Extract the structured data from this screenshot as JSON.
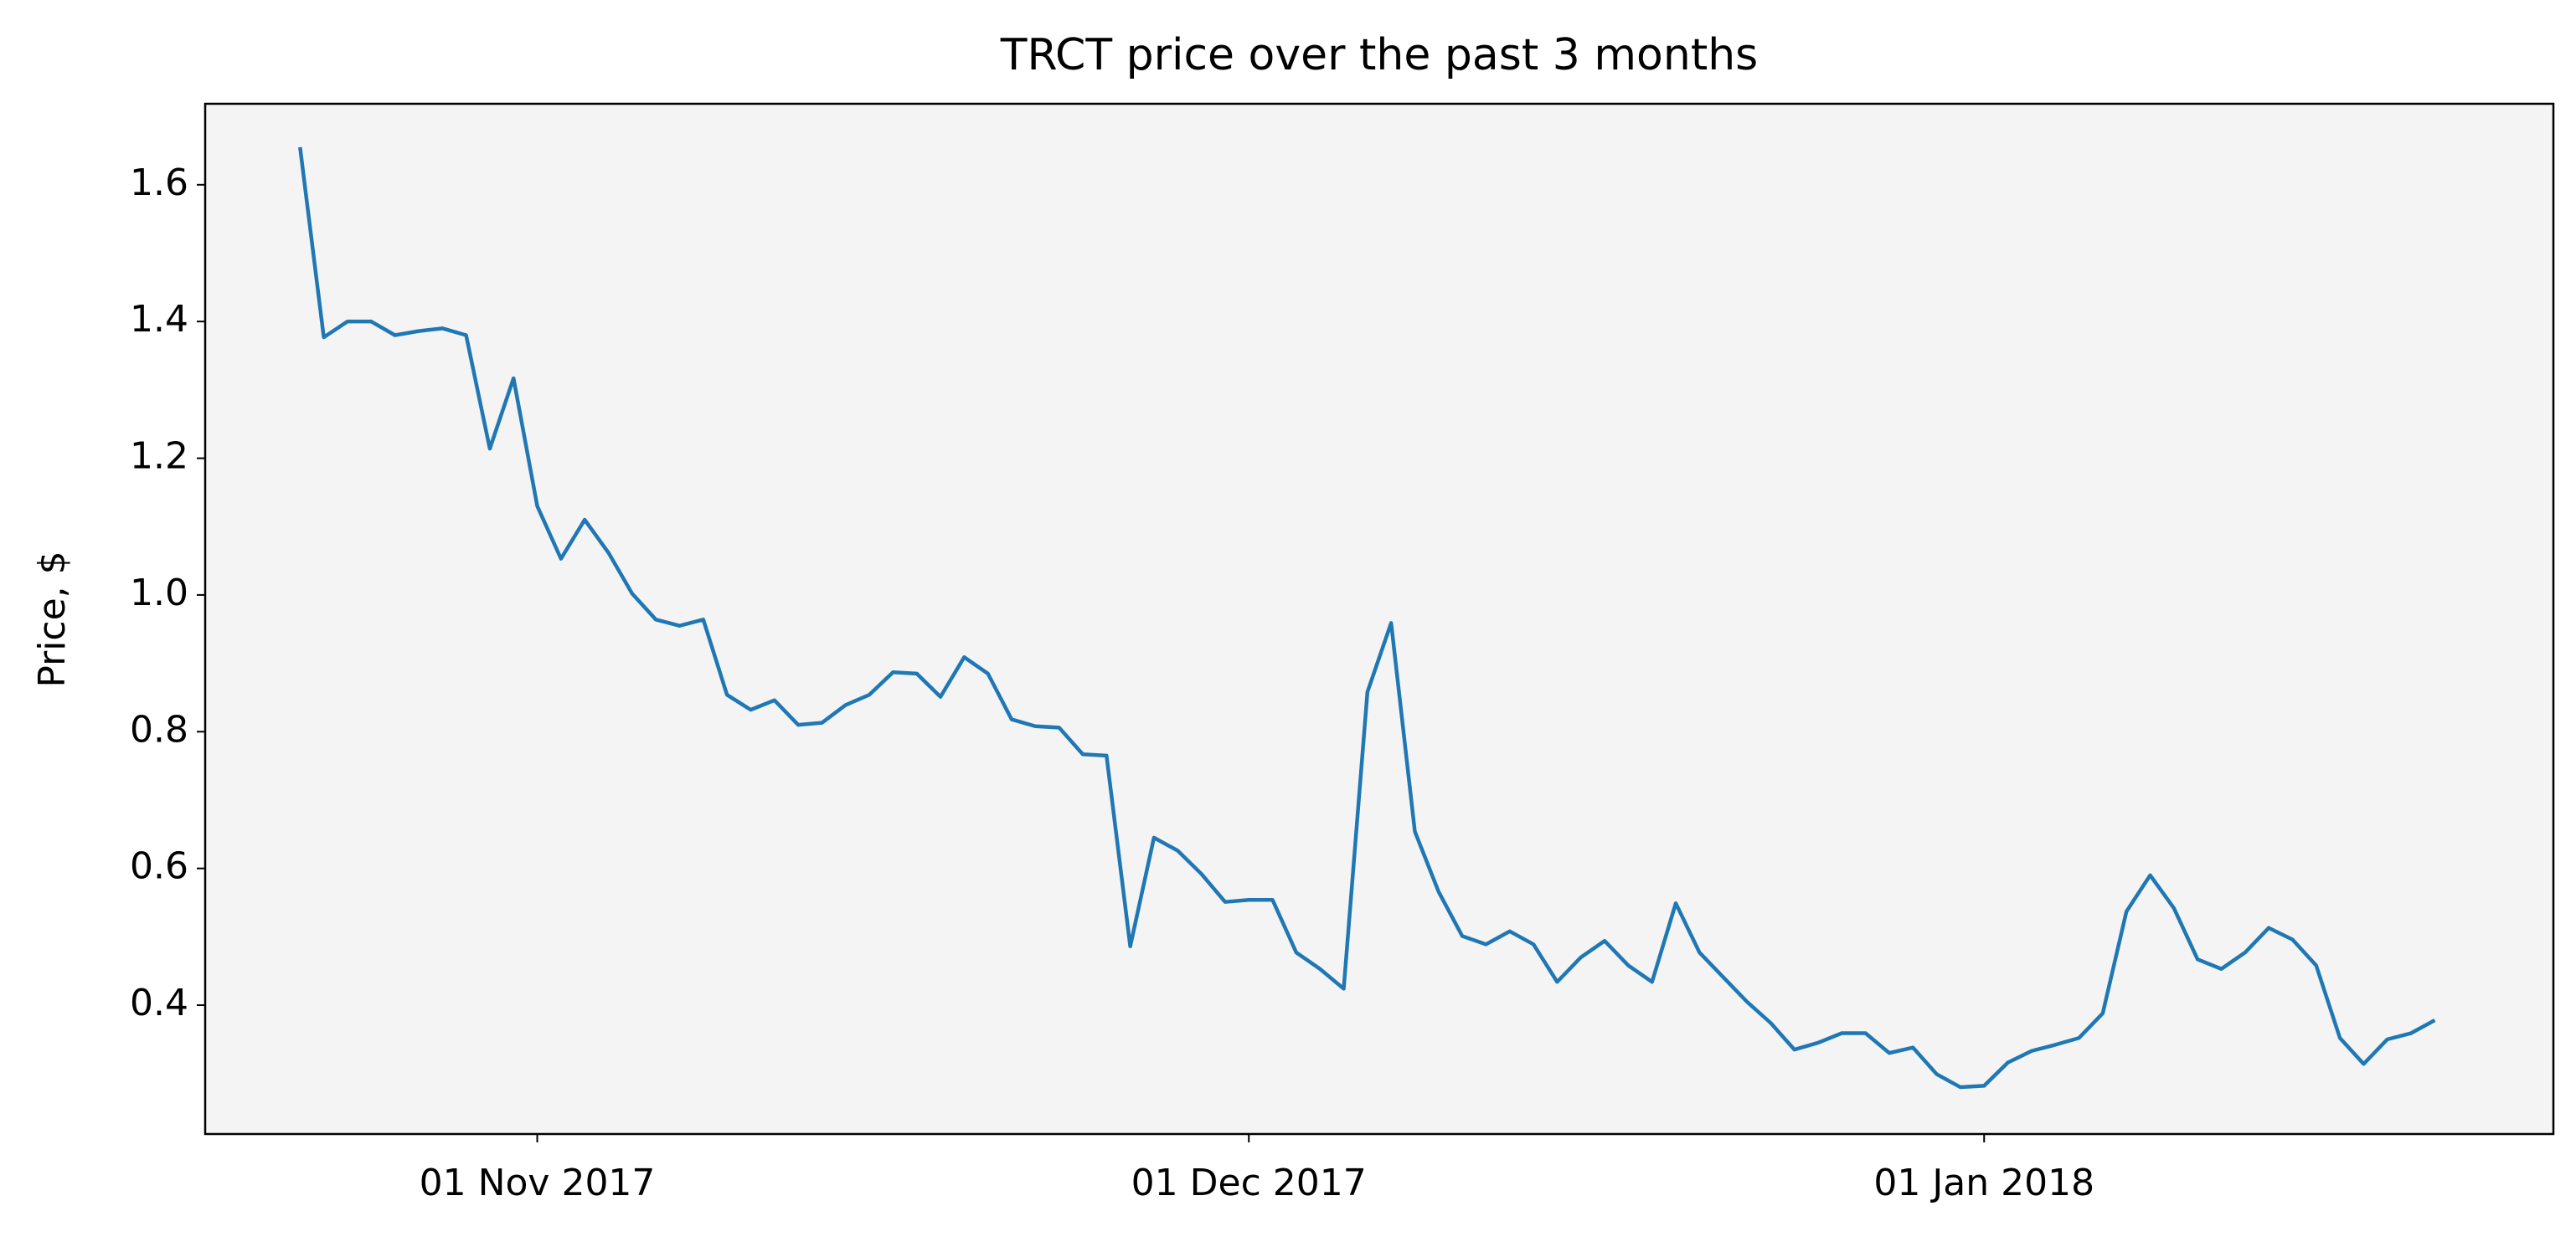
{
  "chart_data": {
    "type": "line",
    "title": "TRCT price over the past 3 months",
    "y_label": "Price, $",
    "x": [
      "2017-10-22",
      "2017-10-23",
      "2017-10-24",
      "2017-10-25",
      "2017-10-26",
      "2017-10-27",
      "2017-10-28",
      "2017-10-29",
      "2017-10-30",
      "2017-10-31",
      "2017-11-01",
      "2017-11-02",
      "2017-11-03",
      "2017-11-04",
      "2017-11-05",
      "2017-11-06",
      "2017-11-07",
      "2017-11-08",
      "2017-11-09",
      "2017-11-10",
      "2017-11-11",
      "2017-11-12",
      "2017-11-13",
      "2017-11-14",
      "2017-11-15",
      "2017-11-16",
      "2017-11-17",
      "2017-11-18",
      "2017-11-19",
      "2017-11-20",
      "2017-11-21",
      "2017-11-22",
      "2017-11-23",
      "2017-11-24",
      "2017-11-25",
      "2017-11-26",
      "2017-11-27",
      "2017-11-28",
      "2017-11-29",
      "2017-11-30",
      "2017-12-01",
      "2017-12-02",
      "2017-12-03",
      "2017-12-04",
      "2017-12-05",
      "2017-12-06",
      "2017-12-07",
      "2017-12-08",
      "2017-12-09",
      "2017-12-10",
      "2017-12-11",
      "2017-12-12",
      "2017-12-13",
      "2017-12-14",
      "2017-12-15",
      "2017-12-16",
      "2017-12-17",
      "2017-12-18",
      "2017-12-19",
      "2017-12-20",
      "2017-12-21",
      "2017-12-22",
      "2017-12-23",
      "2017-12-24",
      "2017-12-25",
      "2017-12-26",
      "2017-12-27",
      "2017-12-28",
      "2017-12-29",
      "2017-12-30",
      "2017-12-31",
      "2018-01-01",
      "2018-01-02",
      "2018-01-03",
      "2018-01-04",
      "2018-01-05",
      "2018-01-06",
      "2018-01-07",
      "2018-01-08",
      "2018-01-09",
      "2018-01-10",
      "2018-01-11",
      "2018-01-12",
      "2018-01-13",
      "2018-01-14",
      "2018-01-15",
      "2018-01-16",
      "2018-01-17",
      "2018-01-18",
      "2018-01-19",
      "2018-01-20"
    ],
    "series": [
      {
        "name": "TRCT",
        "color": "#1f77b4",
        "values": [
          1.655,
          1.377,
          1.4,
          1.4,
          1.38,
          1.386,
          1.39,
          1.38,
          1.214,
          1.317,
          1.13,
          1.053,
          1.11,
          1.062,
          1.002,
          0.964,
          0.955,
          0.964,
          0.854,
          0.832,
          0.846,
          0.81,
          0.813,
          0.839,
          0.854,
          0.887,
          0.885,
          0.851,
          0.909,
          0.885,
          0.818,
          0.808,
          0.806,
          0.767,
          0.765,
          0.486,
          0.645,
          0.626,
          0.592,
          0.551,
          0.554,
          0.554,
          0.477,
          0.453,
          0.424,
          0.858,
          0.959,
          0.654,
          0.566,
          0.501,
          0.489,
          0.508,
          0.489,
          0.434,
          0.47,
          0.494,
          0.458,
          0.434,
          0.549,
          0.477,
          0.441,
          0.405,
          0.374,
          0.335,
          0.345,
          0.359,
          0.359,
          0.33,
          0.338,
          0.299,
          0.28,
          0.282,
          0.316,
          0.333,
          0.342,
          0.352,
          0.388,
          0.537,
          0.59,
          0.542,
          0.467,
          0.453,
          0.477,
          0.513,
          0.496,
          0.458,
          0.352,
          0.314,
          0.35,
          0.359,
          0.378
        ]
      }
    ],
    "xlim": [
      "2017-10-18",
      "2018-01-25"
    ],
    "xticks": [
      {
        "value": "2017-11-01",
        "label": "01 Nov 2017"
      },
      {
        "value": "2017-12-01",
        "label": "01 Dec 2017"
      },
      {
        "value": "2018-01-01",
        "label": "01 Jan 2018"
      }
    ],
    "ylim": [
      0.2115,
      1.7185
    ],
    "yticks": [
      0.4,
      0.6,
      0.8,
      {
        "value": 1,
        "label": "1.0"
      },
      1.2,
      1.4,
      1.6
    ],
    "background": "#f4f4f4"
  }
}
